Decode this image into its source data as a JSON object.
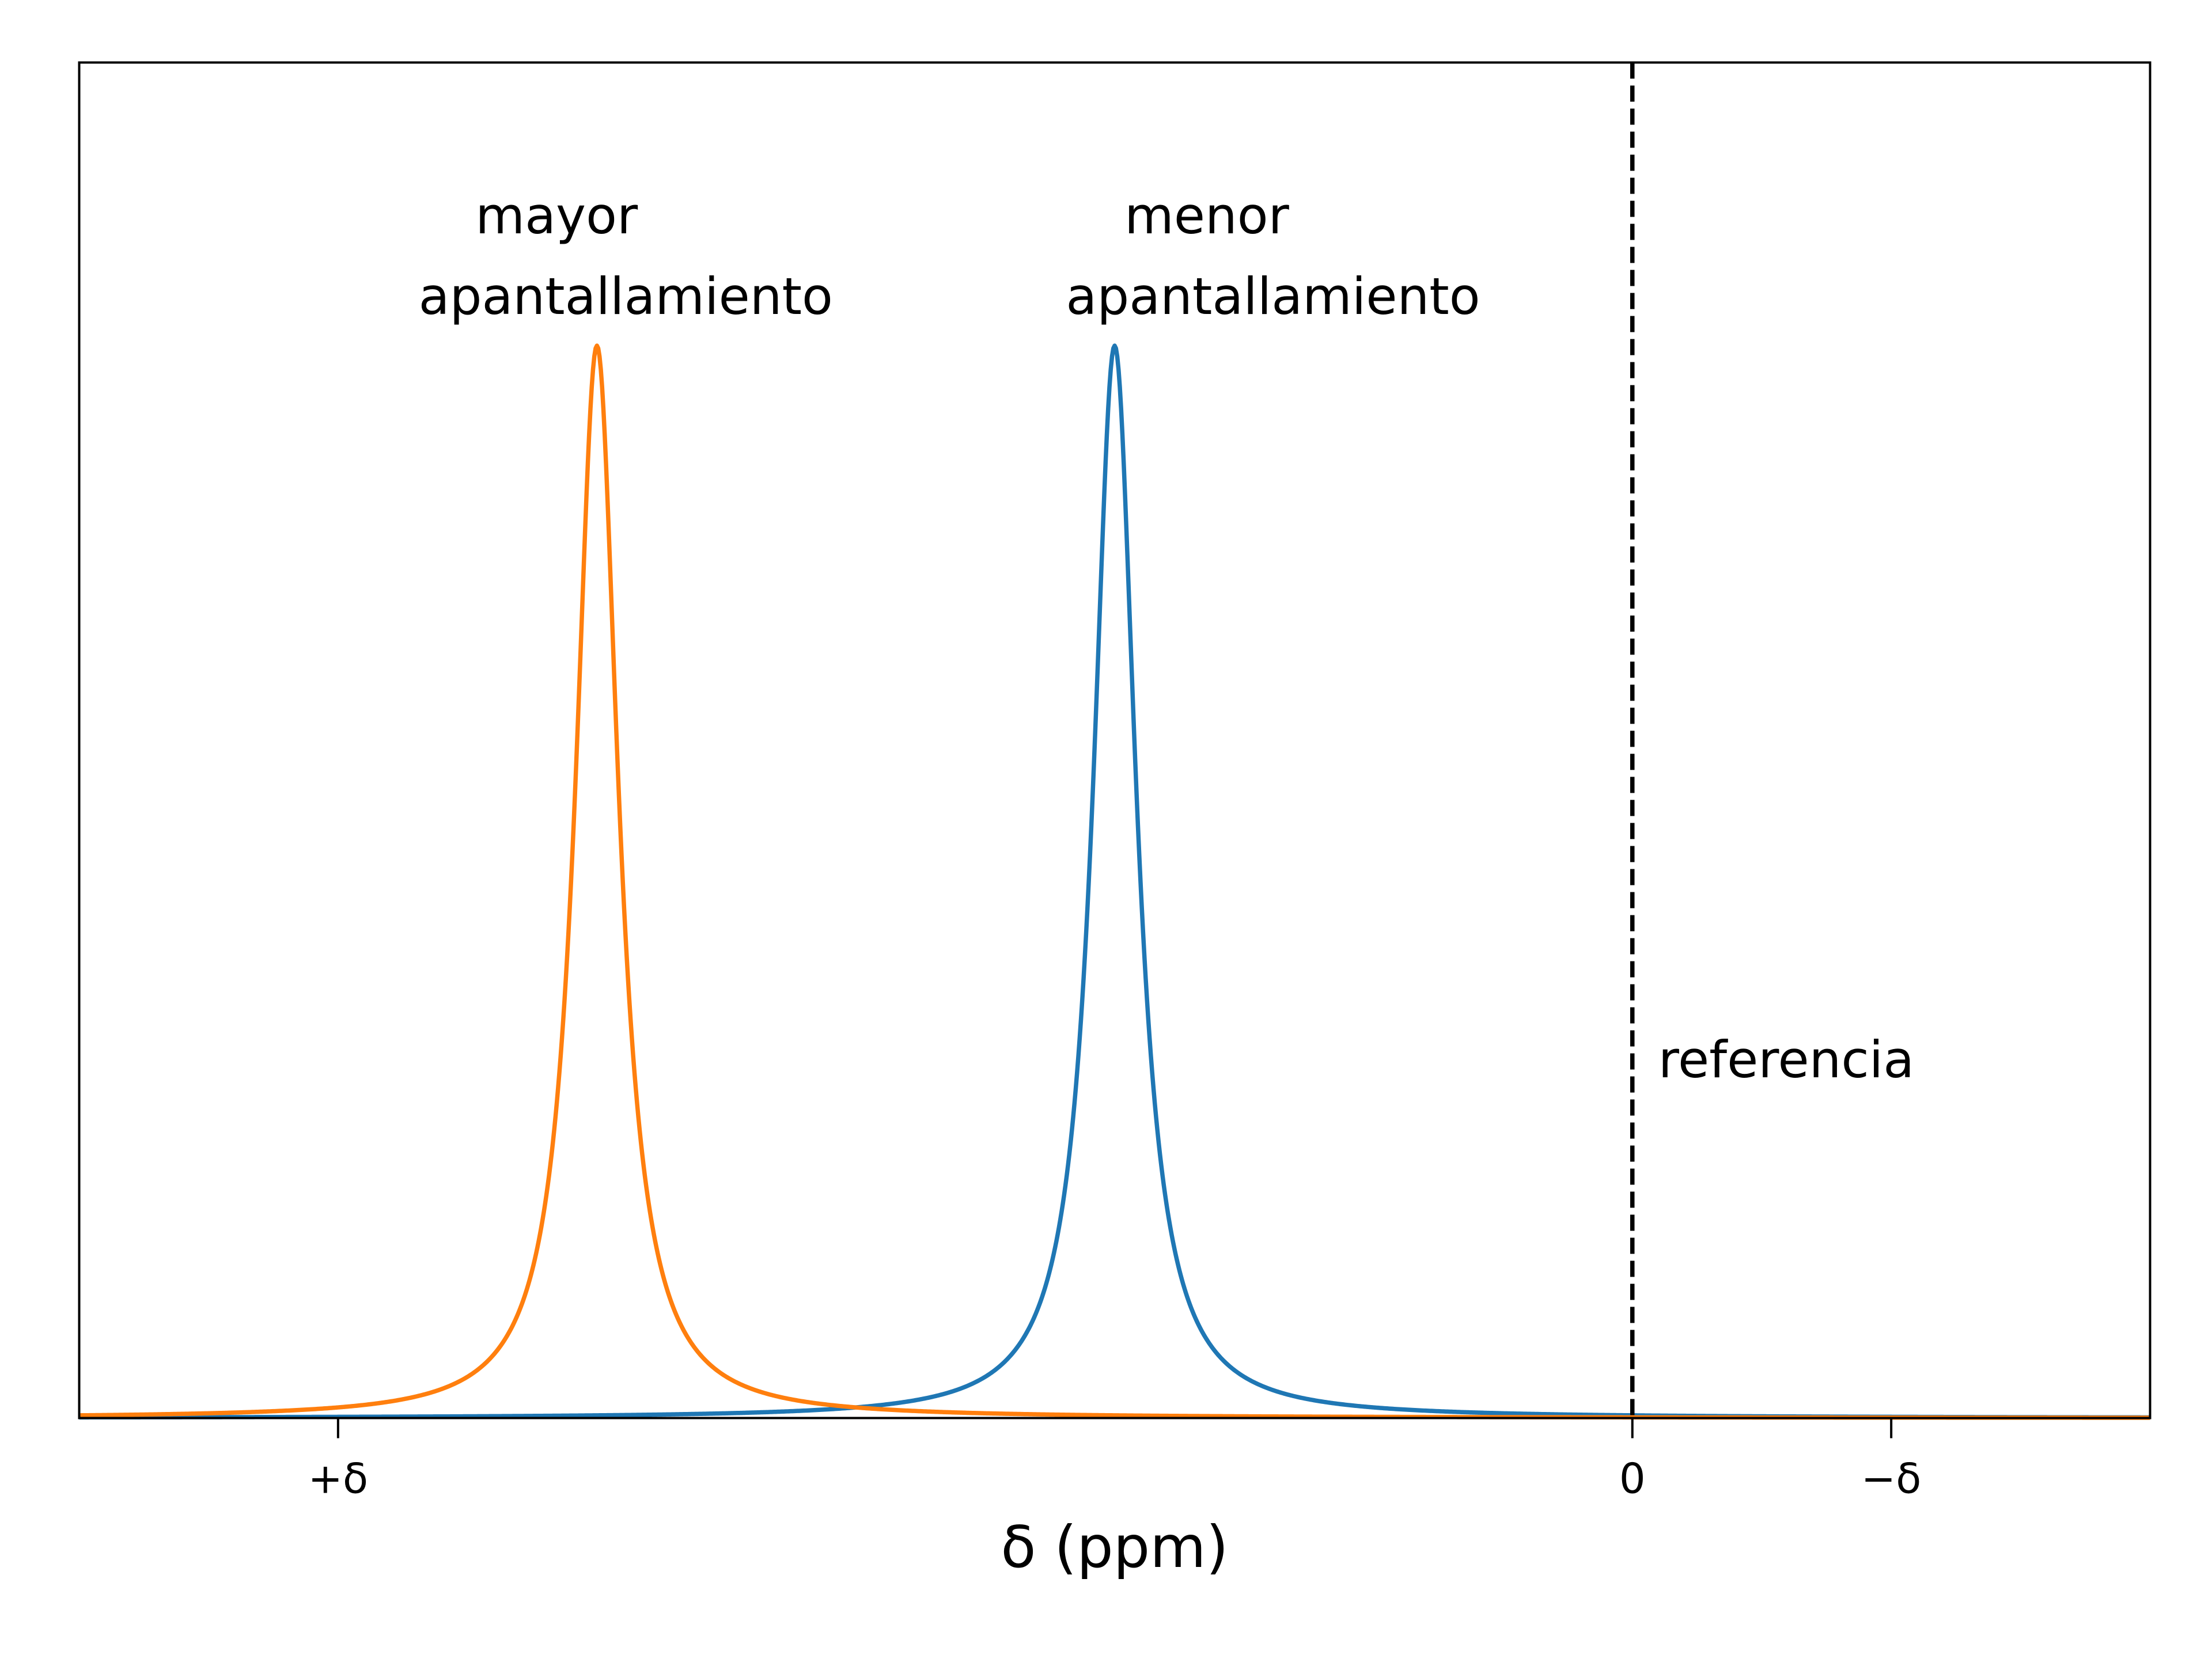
{
  "chart_data": {
    "type": "line",
    "title": "",
    "xlabel": "δ (ppm)",
    "ylabel": "",
    "x_direction": "reversed",
    "xlim": [
      3,
      -1
    ],
    "ylim": [
      0,
      1
    ],
    "xticks": [
      {
        "value": 2.5,
        "label": "+δ"
      },
      {
        "value": 0,
        "label": "0"
      },
      {
        "value": -0.5,
        "label": "−δ"
      }
    ],
    "yticks": [],
    "grid": false,
    "legend": "none",
    "series": [
      {
        "color": "#1f77b4",
        "peak_center": 1.0,
        "peak_height": 1.0,
        "half_width": 0.05
      },
      {
        "color": "#ff7f0e",
        "peak_center": 2.0,
        "peak_height": 1.0,
        "half_width": 0.05
      }
    ],
    "reference_line": {
      "x": 0,
      "style": "dashed",
      "color": "#000000"
    },
    "annotations": [
      {
        "lines": [
          "mayor",
          "apantallamiento"
        ],
        "x": 2.0
      },
      {
        "lines": [
          "menor",
          "apantallamiento"
        ],
        "x": 1.0
      },
      {
        "lines": [
          "referencia"
        ],
        "x": 0
      }
    ]
  }
}
